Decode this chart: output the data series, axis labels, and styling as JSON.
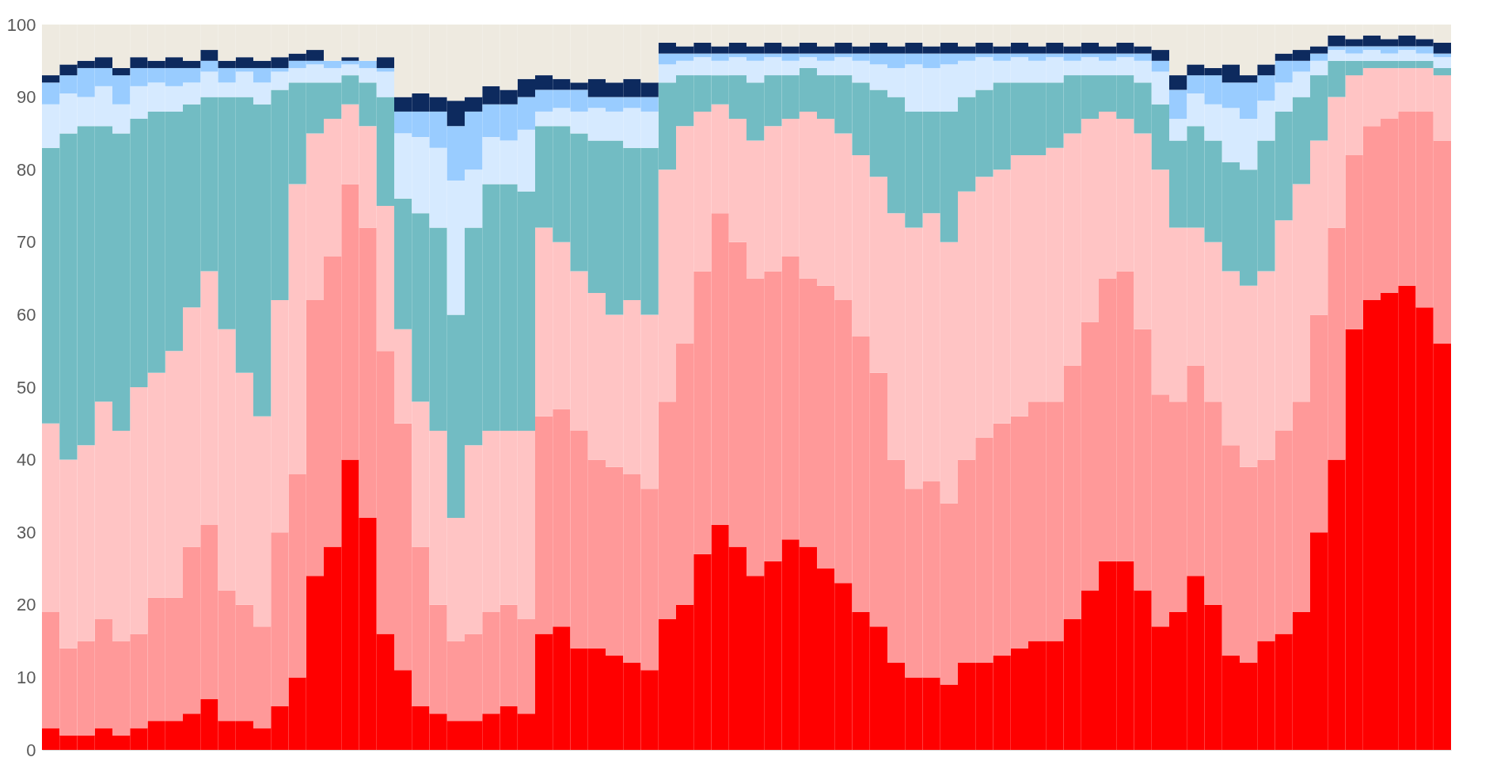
{
  "chart_data": {
    "type": "bar",
    "stacked": true,
    "tick_labels": "y",
    "grid": false,
    "legend": false,
    "categories": [
      null,
      null,
      null,
      null,
      null,
      null,
      null,
      null,
      null,
      null,
      null,
      null,
      null,
      null,
      null,
      null,
      null,
      null,
      null,
      null,
      null,
      null,
      null,
      null,
      null,
      null,
      null,
      null,
      null,
      null,
      null,
      null,
      null,
      null,
      null,
      null,
      null,
      null,
      null,
      null,
      null,
      null,
      null,
      null,
      null,
      null,
      null,
      null,
      null,
      null,
      null,
      null,
      null,
      null,
      null,
      null,
      null,
      null,
      null,
      null,
      null,
      null,
      null,
      null,
      null,
      null,
      null,
      null,
      null,
      null,
      null,
      null,
      null,
      null,
      null,
      null,
      null,
      null,
      null,
      null
    ],
    "ylim": [
      0,
      100
    ],
    "yticks": [
      0,
      10,
      20,
      30,
      40,
      50,
      60,
      70,
      80,
      90,
      100
    ],
    "series": [
      {
        "color": "#ff0000",
        "values": [
          3,
          2,
          2,
          3,
          2,
          3,
          4,
          4,
          5,
          7,
          4,
          4,
          3,
          6,
          10,
          24,
          28,
          40,
          32,
          16,
          11,
          6,
          5,
          4,
          4,
          5,
          6,
          5,
          16,
          17,
          14,
          14,
          13,
          12,
          11,
          18,
          20,
          27,
          31,
          28,
          24,
          26,
          29,
          28,
          25,
          23,
          19,
          17,
          12,
          10,
          10,
          9,
          12,
          12,
          13,
          14,
          15,
          15,
          18,
          22,
          26,
          26,
          22,
          17,
          19,
          24,
          20,
          13,
          12,
          15,
          16,
          19,
          30,
          40,
          58,
          62,
          63,
          64,
          61,
          56
        ]
      },
      {
        "color": "#ff9999",
        "values": [
          16,
          12,
          13,
          15,
          13,
          13,
          17,
          17,
          23,
          24,
          18,
          16,
          14,
          24,
          28,
          38,
          40,
          38,
          40,
          39,
          34,
          22,
          15,
          11,
          12,
          14,
          14,
          13,
          30,
          30,
          30,
          26,
          26,
          26,
          25,
          30,
          36,
          39,
          43,
          42,
          41,
          40,
          39,
          37,
          39,
          39,
          38,
          35,
          28,
          26,
          27,
          25,
          28,
          31,
          32,
          32,
          33,
          33,
          35,
          37,
          39,
          40,
          36,
          32,
          29,
          29,
          28,
          29,
          27,
          25,
          28,
          29,
          30,
          32,
          24,
          24,
          24,
          24,
          27,
          28
        ]
      },
      {
        "color": "#ffc4c4",
        "values": [
          26,
          26,
          27,
          30,
          29,
          34,
          31,
          34,
          33,
          35,
          36,
          32,
          29,
          32,
          40,
          23,
          19,
          11,
          14,
          20,
          13,
          20,
          24,
          17,
          26,
          25,
          24,
          26,
          26,
          23,
          22,
          23,
          21,
          24,
          24,
          32,
          30,
          22,
          15,
          17,
          19,
          20,
          19,
          23,
          23,
          23,
          25,
          27,
          34,
          36,
          37,
          36,
          37,
          36,
          35,
          36,
          34,
          35,
          32,
          28,
          23,
          21,
          27,
          31,
          24,
          19,
          22,
          24,
          25,
          26,
          29,
          30,
          24,
          18,
          11,
          8,
          7,
          6,
          6,
          9
        ]
      },
      {
        "color": "#72bcc3",
        "values": [
          38,
          45,
          44,
          38,
          41,
          37,
          36,
          33,
          28,
          24,
          32,
          38,
          43,
          29,
          14,
          7,
          5,
          4,
          6,
          15,
          18,
          26,
          28,
          28,
          30,
          34,
          34,
          33,
          14,
          16,
          19,
          21,
          24,
          21,
          23,
          12,
          7,
          5,
          4,
          6,
          8,
          7,
          6,
          6,
          6,
          8,
          10,
          12,
          16,
          16,
          14,
          18,
          13,
          12,
          12,
          10,
          10,
          9,
          8,
          6,
          5,
          6,
          7,
          9,
          12,
          14,
          14,
          15,
          16,
          18,
          15,
          12,
          9,
          5,
          2,
          1,
          1,
          1,
          1,
          1
        ]
      },
      {
        "color": "#d6eaff",
        "values": [
          6,
          5.5,
          4,
          5.5,
          4,
          4.5,
          4,
          3.5,
          3,
          3.5,
          2,
          3.5,
          3,
          2.5,
          2,
          2.5,
          2,
          1.5,
          2,
          3.5,
          9,
          10.5,
          11,
          18.5,
          8,
          6.5,
          6,
          8.5,
          2,
          2.5,
          3,
          4.5,
          4,
          5.5,
          5,
          2.5,
          2,
          2.5,
          2,
          2.5,
          3,
          2.5,
          2,
          1.5,
          2,
          2.5,
          3,
          3.5,
          4,
          6.5,
          6,
          6.5,
          5,
          4.5,
          3,
          3.5,
          3,
          3.5,
          2,
          2.5,
          2,
          2.5,
          3,
          4.5,
          3,
          4.5,
          5,
          7.5,
          7,
          5.5,
          4,
          3.5,
          2,
          1.5,
          1,
          1.5,
          1,
          1.5,
          1,
          1.5
        ]
      },
      {
        "color": "#99ccff",
        "values": [
          3,
          2.5,
          4,
          2.5,
          4,
          2.5,
          2,
          2.5,
          2,
          1.5,
          2,
          0.5,
          2,
          0.5,
          1,
          0.5,
          1,
          0.5,
          1,
          0.5,
          3,
          3.5,
          5,
          7.5,
          8,
          4.5,
          5,
          4.5,
          3,
          2.5,
          3,
          1.5,
          2,
          1.5,
          2,
          1.5,
          1,
          0.5,
          1,
          0.5,
          1,
          0.5,
          1,
          0.5,
          1,
          0.5,
          1,
          1.5,
          2,
          1.5,
          2,
          1.5,
          1,
          0.5,
          1,
          0.5,
          1,
          0.5,
          1,
          0.5,
          1,
          0.5,
          1,
          1.5,
          4,
          2.5,
          4,
          3.5,
          5,
          3.5,
          3,
          1.5,
          1,
          0.5,
          1,
          0.5,
          1,
          0.5,
          1,
          0.5
        ]
      },
      {
        "color": "#0d2a5e",
        "values": [
          1,
          1.5,
          1,
          1.5,
          1,
          1.5,
          1,
          1.5,
          1,
          1.5,
          1,
          1.5,
          1,
          1.5,
          1,
          1.5,
          0,
          0.5,
          0,
          1.5,
          2,
          2.5,
          2,
          3.5,
          2,
          2.5,
          2,
          2.5,
          2,
          1.5,
          1,
          2.5,
          2,
          2.5,
          2,
          1.5,
          1,
          1.5,
          1,
          1.5,
          1,
          1.5,
          1,
          1.5,
          1,
          1.5,
          1,
          1.5,
          1,
          1.5,
          1,
          1.5,
          1,
          1.5,
          1,
          1.5,
          1,
          1.5,
          1,
          1.5,
          1,
          1.5,
          1,
          1.5,
          2,
          1.5,
          1,
          2.5,
          1,
          1.5,
          1,
          1.5,
          1,
          1.5,
          1,
          1.5,
          1,
          1.5,
          1,
          1.5
        ]
      },
      {
        "color": "#eeeae0",
        "values": [
          7,
          5.5,
          5,
          4.5,
          6,
          4.5,
          5,
          4.5,
          5,
          3.5,
          5,
          4.5,
          5,
          4.5,
          4,
          3.5,
          5,
          4.5,
          5,
          4.5,
          10,
          9.5,
          10,
          10.5,
          10,
          8.5,
          9,
          7.5,
          7,
          7.5,
          8,
          7.5,
          8,
          7.5,
          8,
          2.5,
          3,
          2.5,
          3,
          2.5,
          3,
          2.5,
          3,
          2.5,
          3,
          2.5,
          3,
          2.5,
          3,
          2.5,
          3,
          2.5,
          3,
          2.5,
          3,
          2.5,
          3,
          2.5,
          3,
          2.5,
          3,
          2.5,
          3,
          3.5,
          7,
          5.5,
          6,
          5.5,
          7,
          5.5,
          4,
          3.5,
          3,
          1.5,
          2,
          1.5,
          2,
          1.5,
          2,
          2.5
        ]
      }
    ]
  }
}
